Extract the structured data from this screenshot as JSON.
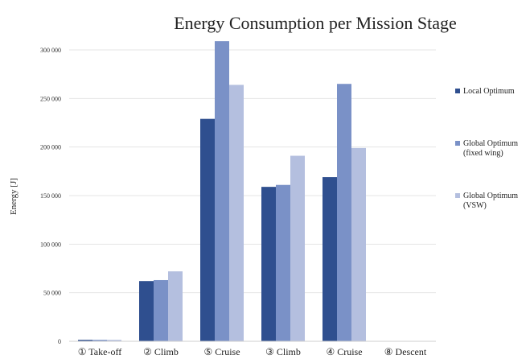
{
  "chart_data": {
    "type": "bar",
    "title": "Energy Consumption per Mission Stage",
    "ylabel": "Energy [J]",
    "xlabel": "",
    "ylim": [
      0,
      300000
    ],
    "yticks": [
      0,
      50000,
      100000,
      150000,
      200000,
      250000,
      300000
    ],
    "ytick_labels": [
      "0",
      "50 000",
      "100 000",
      "150 000",
      "200 000",
      "250 000",
      "300 000"
    ],
    "categories": [
      "① Take-off",
      "② Climb",
      "⑤ Cruise",
      "③ Climb",
      "④ Cruise",
      "⑧ Descent"
    ],
    "grid": true,
    "legend_position": "right",
    "series": [
      {
        "name_lines": [
          "Local Optimum"
        ],
        "color": "#2f4f8f",
        "values": [
          1500,
          62000,
          229000,
          159000,
          169000,
          0
        ]
      },
      {
        "name_lines": [
          "Global Optimum",
          "(fixed wing)"
        ],
        "color": "#7a91c7",
        "values": [
          1500,
          63000,
          309000,
          161000,
          265000,
          0
        ]
      },
      {
        "name_lines": [
          "Global Optimum",
          "(VSW)"
        ],
        "color": "#b4bfdf",
        "values": [
          1500,
          72000,
          264000,
          191000,
          199000,
          0
        ]
      }
    ]
  }
}
